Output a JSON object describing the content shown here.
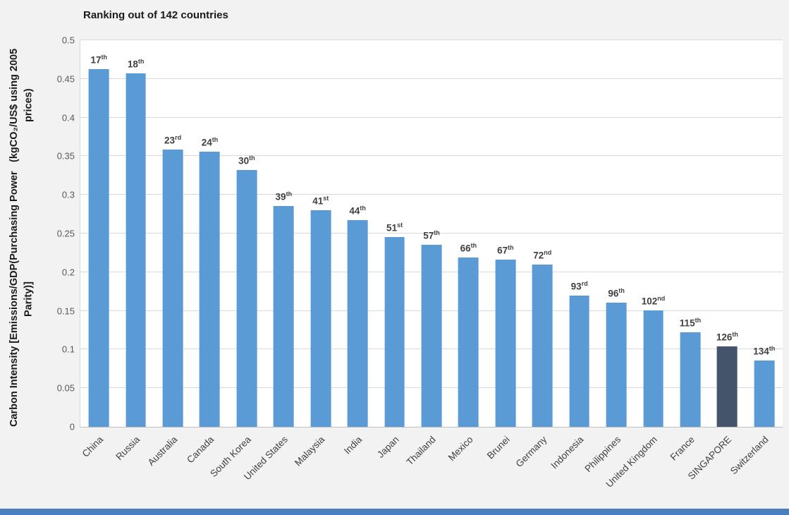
{
  "page": {
    "background": "#F2F2F2",
    "bottom_strip_color": "#4A7EBD"
  },
  "chart_data": {
    "type": "bar",
    "title": "Ranking out of 142 countries",
    "ylabel_line1": "Carbon Intensity [Emissions/GDP(Purchasing Power Parity)]",
    "ylabel_line2": "(kgCO₂/US$ using 2005 prices)",
    "xlabel": "",
    "ylim": [
      0,
      0.5
    ],
    "yticks": [
      0,
      0.05,
      0.1,
      0.15,
      0.2,
      0.25,
      0.3,
      0.35,
      0.4,
      0.45,
      0.5
    ],
    "grid": true,
    "legend": false,
    "bar_color": "#5B9BD5",
    "highlight_color": "#44546A",
    "highlight_index": 17,
    "categories": [
      "China",
      "Russia",
      "Australia",
      "Canada",
      "South Korea",
      "United States",
      "Malaysia",
      "India",
      "Japan",
      "Thailand",
      "Mexico",
      "Brunei",
      "Germany",
      "Indonesia",
      "Philippines",
      "United Kingdom",
      "France",
      "SINGAPORE",
      "Switzerland"
    ],
    "values": [
      0.463,
      0.457,
      0.359,
      0.356,
      0.332,
      0.286,
      0.28,
      0.267,
      0.245,
      0.235,
      0.219,
      0.216,
      0.21,
      0.17,
      0.161,
      0.151,
      0.122,
      0.104,
      0.086
    ],
    "rank_labels": [
      {
        "rank": "17",
        "suffix": "th"
      },
      {
        "rank": "18",
        "suffix": "th"
      },
      {
        "rank": "23",
        "suffix": "rd"
      },
      {
        "rank": "24",
        "suffix": "th"
      },
      {
        "rank": "30",
        "suffix": "th"
      },
      {
        "rank": "39",
        "suffix": "th"
      },
      {
        "rank": "41",
        "suffix": "st"
      },
      {
        "rank": "44",
        "suffix": "th"
      },
      {
        "rank": "51",
        "suffix": "st"
      },
      {
        "rank": "57",
        "suffix": "th"
      },
      {
        "rank": "66",
        "suffix": "th"
      },
      {
        "rank": "67",
        "suffix": "th"
      },
      {
        "rank": "72",
        "suffix": "nd"
      },
      {
        "rank": "93",
        "suffix": "rd"
      },
      {
        "rank": "96",
        "suffix": "th"
      },
      {
        "rank": "102",
        "suffix": "nd"
      },
      {
        "rank": "115",
        "suffix": "th"
      },
      {
        "rank": "126",
        "suffix": "th"
      },
      {
        "rank": "134",
        "suffix": "th"
      }
    ]
  }
}
